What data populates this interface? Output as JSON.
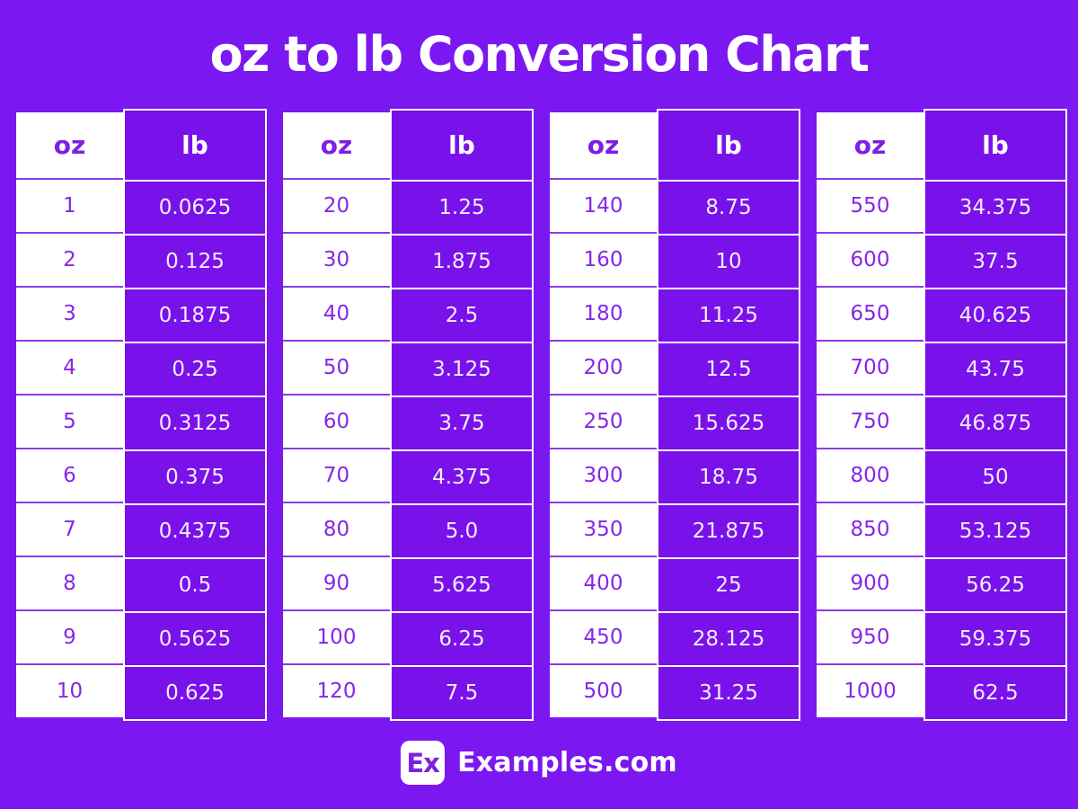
{
  "title": "oz to lb Conversion Chart",
  "columns": {
    "oz_label": "oz",
    "lb_label": "lb"
  },
  "tables": [
    {
      "rows": [
        {
          "oz": "1",
          "lb": "0.0625"
        },
        {
          "oz": "2",
          "lb": "0.125"
        },
        {
          "oz": "3",
          "lb": "0.1875"
        },
        {
          "oz": "4",
          "lb": "0.25"
        },
        {
          "oz": "5",
          "lb": "0.3125"
        },
        {
          "oz": "6",
          "lb": "0.375"
        },
        {
          "oz": "7",
          "lb": "0.4375"
        },
        {
          "oz": "8",
          "lb": "0.5"
        },
        {
          "oz": "9",
          "lb": "0.5625"
        },
        {
          "oz": "10",
          "lb": "0.625"
        }
      ]
    },
    {
      "rows": [
        {
          "oz": "20",
          "lb": "1.25"
        },
        {
          "oz": "30",
          "lb": "1.875"
        },
        {
          "oz": "40",
          "lb": "2.5"
        },
        {
          "oz": "50",
          "lb": "3.125"
        },
        {
          "oz": "60",
          "lb": "3.75"
        },
        {
          "oz": "70",
          "lb": "4.375"
        },
        {
          "oz": "80",
          "lb": "5.0"
        },
        {
          "oz": "90",
          "lb": "5.625"
        },
        {
          "oz": "100",
          "lb": "6.25"
        },
        {
          "oz": "120",
          "lb": "7.5"
        }
      ]
    },
    {
      "rows": [
        {
          "oz": "140",
          "lb": "8.75"
        },
        {
          "oz": "160",
          "lb": "10"
        },
        {
          "oz": "180",
          "lb": "11.25"
        },
        {
          "oz": "200",
          "lb": "12.5"
        },
        {
          "oz": "250",
          "lb": "15.625"
        },
        {
          "oz": "300",
          "lb": "18.75"
        },
        {
          "oz": "350",
          "lb": "21.875"
        },
        {
          "oz": "400",
          "lb": "25"
        },
        {
          "oz": "450",
          "lb": "28.125"
        },
        {
          "oz": "500",
          "lb": "31.25"
        }
      ]
    },
    {
      "rows": [
        {
          "oz": "550",
          "lb": "34.375"
        },
        {
          "oz": "600",
          "lb": "37.5"
        },
        {
          "oz": "650",
          "lb": "40.625"
        },
        {
          "oz": "700",
          "lb": "43.75"
        },
        {
          "oz": "750",
          "lb": "46.875"
        },
        {
          "oz": "800",
          "lb": "50"
        },
        {
          "oz": "850",
          "lb": "53.125"
        },
        {
          "oz": "900",
          "lb": "56.25"
        },
        {
          "oz": "950",
          "lb": "59.375"
        },
        {
          "oz": "1000",
          "lb": "62.5"
        }
      ]
    }
  ],
  "footer": {
    "logo_text": "Ex",
    "site_name": "Examples.com"
  },
  "colors": {
    "background": "#7B17F0",
    "lb_cell": "#7911EB",
    "purple_text": "#7E1FE4",
    "oz_value_text": "#8527E9",
    "row_separator": "#8B3AEA",
    "white": "#FFFFFF"
  },
  "chart_data": {
    "type": "table",
    "title": "oz to lb Conversion Chart",
    "columns": [
      "oz",
      "lb"
    ],
    "tables": [
      {
        "oz": [
          1,
          2,
          3,
          4,
          5,
          6,
          7,
          8,
          9,
          10
        ],
        "lb": [
          0.0625,
          0.125,
          0.1875,
          0.25,
          0.3125,
          0.375,
          0.4375,
          0.5,
          0.5625,
          0.625
        ]
      },
      {
        "oz": [
          20,
          30,
          40,
          50,
          60,
          70,
          80,
          90,
          100,
          120
        ],
        "lb": [
          1.25,
          1.875,
          2.5,
          3.125,
          3.75,
          4.375,
          5.0,
          5.625,
          6.25,
          7.5
        ]
      },
      {
        "oz": [
          140,
          160,
          180,
          200,
          250,
          300,
          350,
          400,
          450,
          500
        ],
        "lb": [
          8.75,
          10,
          11.25,
          12.5,
          15.625,
          18.75,
          21.875,
          25,
          28.125,
          31.25
        ]
      },
      {
        "oz": [
          550,
          600,
          650,
          700,
          750,
          800,
          850,
          900,
          950,
          1000
        ],
        "lb": [
          34.375,
          37.5,
          40.625,
          43.75,
          46.875,
          50,
          53.125,
          56.25,
          59.375,
          62.5
        ]
      }
    ]
  }
}
